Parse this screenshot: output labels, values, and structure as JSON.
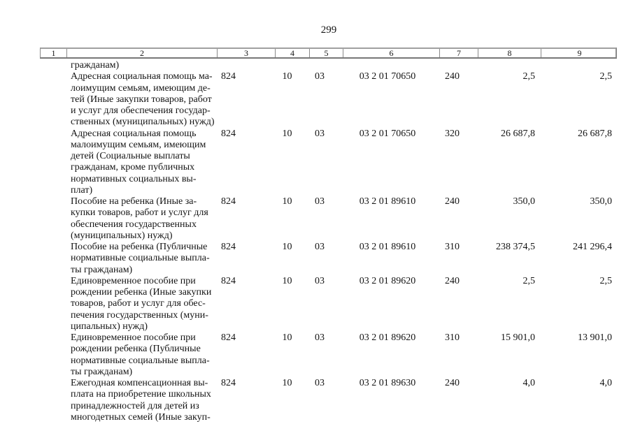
{
  "page": {
    "number": "299"
  },
  "table": {
    "header_columns": [
      "1",
      "2",
      "3",
      "4",
      "5",
      "6",
      "7",
      "8",
      "9"
    ],
    "rows": [
      {
        "lines": [
          "гражданам)"
        ],
        "values": [
          "",
          "",
          "",
          "",
          "",
          "",
          ""
        ]
      },
      {
        "lines": [
          "Адресная социальная помощь ма-",
          "лоимущим семьям, имеющим де-",
          "тей (Иные закупки товаров, работ",
          "и услуг для обеспечения государ-",
          "ственных (муниципальных) нужд)"
        ],
        "values": [
          "824",
          "10",
          "03",
          "03 2 01 70650",
          "240",
          "2,5",
          "2,5"
        ]
      },
      {
        "lines": [
          "Адресная социальная помощь",
          "малоимущим семьям, имеющим",
          "детей (Социальные выплаты",
          "гражданам, кроме публичных",
          "нормативных социальных вы-",
          "плат)"
        ],
        "values": [
          "824",
          "10",
          "03",
          "03 2 01 70650",
          "320",
          "26 687,8",
          "26 687,8"
        ]
      },
      {
        "lines": [
          "Пособие на ребенка (Иные за-",
          "купки товаров, работ и услуг для",
          "обеспечения государственных",
          "(муниципальных) нужд)"
        ],
        "values": [
          "824",
          "10",
          "03",
          "03 2 01 89610",
          "240",
          "350,0",
          "350,0"
        ]
      },
      {
        "lines": [
          "Пособие на ребенка (Публичные",
          "нормативные социальные выпла-",
          "ты гражданам)"
        ],
        "values": [
          "824",
          "10",
          "03",
          "03 2 01 89610",
          "310",
          "238 374,5",
          "241 296,4"
        ]
      },
      {
        "lines": [
          "Единовременное пособие при",
          "рождении ребенка (Иные закупки",
          "товаров, работ и услуг для обес-",
          "печения государственных (муни-",
          "ципальных) нужд)"
        ],
        "values": [
          "824",
          "10",
          "03",
          "03 2 01 89620",
          "240",
          "2,5",
          "2,5"
        ]
      },
      {
        "lines": [
          "Единовременное пособие при",
          "рождении ребенка (Публичные",
          "нормативные социальные выпла-",
          "ты гражданам)"
        ],
        "values": [
          "824",
          "10",
          "03",
          "03 2 01 89620",
          "310",
          "15 901,0",
          "13 901,0"
        ]
      },
      {
        "lines": [
          "Ежегодная компенсационная вы-",
          "плата на приобретение школьных",
          "принадлежностей для детей из",
          "многодетных семей (Иные закуп-"
        ],
        "values": [
          "824",
          "10",
          "03",
          "03 2 01 89630",
          "240",
          "4,0",
          "4,0"
        ]
      }
    ]
  }
}
